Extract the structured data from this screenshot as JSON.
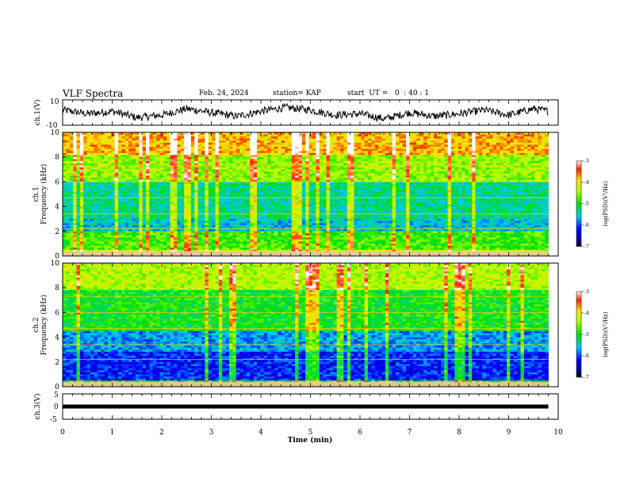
{
  "header": {
    "title": "VLF Spectra",
    "date": "Feb. 24, 2024",
    "station": "station= KAP",
    "start_ut": "start  UT =   0  : 40 : 1"
  },
  "chart_data": [
    {
      "type": "line",
      "panel": "ch1-waveform",
      "ylabel": "ch.1(V)",
      "yticks": [
        "10",
        "-10"
      ],
      "ylim": [
        -10,
        10
      ],
      "x": [
        0,
        0.5,
        1,
        1.5,
        2,
        2.5,
        3,
        3.5,
        4,
        4.5,
        5,
        5.5,
        6,
        6.5,
        7,
        7.5,
        8,
        8.5,
        9,
        9.5,
        9.8
      ],
      "values": [
        2,
        -1,
        1,
        -4,
        -2,
        3,
        0,
        -3,
        1,
        4,
        2,
        -2,
        -1,
        -5,
        0,
        -3,
        -1,
        2,
        -2,
        3,
        1
      ]
    },
    {
      "type": "heatmap",
      "panel": "ch1-spectrogram",
      "ylabel": "Frequency  (kHz)",
      "ylabel2": "ch.1",
      "yticks": [
        "0",
        "2",
        "4",
        "6",
        "8",
        "10"
      ],
      "ylim": [
        0,
        10
      ],
      "colorbar": {
        "label": "log(PSD)(V²/Hz)",
        "ticks": [
          "-3",
          "-4",
          "-5",
          "-6",
          "-7"
        ],
        "range": [
          -7,
          -3
        ]
      }
    },
    {
      "type": "heatmap",
      "panel": "ch2-spectrogram",
      "ylabel": "Frequency  (kHz)",
      "ylabel2": "ch.2",
      "yticks": [
        "0",
        "2",
        "4",
        "6",
        "8",
        "10"
      ],
      "ylim": [
        0,
        10
      ],
      "colorbar": {
        "label": "log(PSD)(V²/Hz)",
        "ticks": [
          "-3",
          "-4",
          "-5",
          "-6",
          "-7"
        ],
        "range": [
          -7,
          -3
        ]
      }
    },
    {
      "type": "line",
      "panel": "ch3-waveform",
      "ylabel": "ch.3(V)",
      "yticks": [
        "5",
        "0",
        "-5"
      ],
      "ylim": [
        -5,
        5
      ],
      "x": [
        0,
        9.8
      ],
      "values": [
        0,
        0
      ]
    }
  ],
  "xaxis": {
    "label": "Time  (min)",
    "ticks": [
      "0",
      "1",
      "2",
      "3",
      "4",
      "5",
      "6",
      "7",
      "8",
      "9",
      "10"
    ],
    "xlim": [
      0,
      10
    ]
  },
  "colors": {
    "plot_line": "#000000"
  }
}
